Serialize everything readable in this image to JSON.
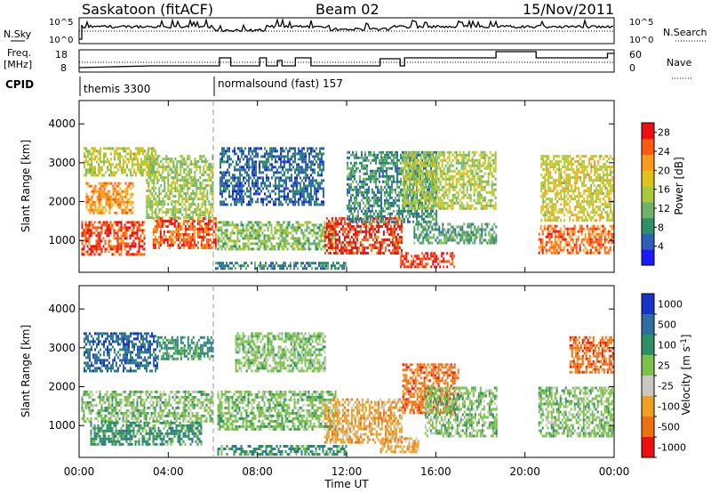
{
  "header": {
    "station": "Saskatoon (fitACF)",
    "beam": "Beam 02",
    "date": "15/Nov/2011"
  },
  "panel_labels": {
    "nsky": "N.Sky",
    "nsearch": "N.Search",
    "freq_line1": "Freq.",
    "freq_line2": "[MHz]",
    "nave": "Nave",
    "cpid": "CPID"
  },
  "small_axes": {
    "nsky_ticks": [
      "10^5",
      "10^0"
    ],
    "nsearch_ticks": [
      "10^5",
      "10^0"
    ],
    "freq_ticks": [
      "18",
      "8"
    ],
    "nave_ticks": [
      "60",
      "0"
    ]
  },
  "cpid_modes": [
    {
      "label": "themis 3300",
      "start_hour": 0
    },
    {
      "label": "normalsound (fast) 157",
      "start_hour": 6
    }
  ],
  "chart_data": [
    {
      "type": "heatmap",
      "title": "",
      "xlabel": "Time UT",
      "ylabel": "Slant Range [km]",
      "x_ticks": [
        "00:00",
        "04:00",
        "08:00",
        "12:00",
        "16:00",
        "20:00",
        "00:00"
      ],
      "y_ticks": [
        "1000",
        "2000",
        "3000",
        "4000"
      ],
      "xlim_hours": [
        0,
        24
      ],
      "ylim_km": [
        180,
        4600
      ],
      "colorbar": {
        "label": "Power [dB]",
        "ticks": [
          "4",
          "8",
          "12",
          "16",
          "20",
          "24",
          "28"
        ],
        "range": [
          0,
          30
        ],
        "colors": [
          "#1a1aff",
          "#2e5fb8",
          "#2f8f66",
          "#6fb36a",
          "#a8c93a",
          "#e0c21a",
          "#ff9a1a",
          "#ff5a10",
          "#ee1010"
        ]
      },
      "data_gaps_hours": [
        [
          18.8,
          20.6
        ]
      ],
      "regions": [
        {
          "t": [
            0.1,
            2.9
          ],
          "r": [
            650,
            1500
          ],
          "level": 26
        },
        {
          "t": [
            0.3,
            2.4
          ],
          "r": [
            1700,
            2500
          ],
          "level": 22
        },
        {
          "t": [
            0.2,
            3.4
          ],
          "r": [
            2700,
            3400
          ],
          "level": 16
        },
        {
          "t": [
            3.3,
            6.1
          ],
          "r": [
            800,
            1600
          ],
          "level": 25
        },
        {
          "t": [
            3.0,
            6.0
          ],
          "r": [
            1600,
            3200
          ],
          "level": 14
        },
        {
          "t": [
            6.1,
            12.0
          ],
          "r": [
            250,
            450
          ],
          "level": 8
        },
        {
          "t": [
            6.2,
            11.5
          ],
          "r": [
            800,
            1500
          ],
          "level": 13
        },
        {
          "t": [
            6.3,
            11.0
          ],
          "r": [
            1900,
            3400
          ],
          "level": 6
        },
        {
          "t": [
            11.0,
            14.5
          ],
          "r": [
            700,
            1600
          ],
          "level": 27
        },
        {
          "t": [
            12.0,
            16.0
          ],
          "r": [
            1500,
            3300
          ],
          "level": 9
        },
        {
          "t": [
            14.4,
            16.8
          ],
          "r": [
            350,
            700
          ],
          "level": 27
        },
        {
          "t": [
            15.0,
            18.7
          ],
          "r": [
            950,
            1450
          ],
          "level": 10
        },
        {
          "t": [
            14.5,
            18.7
          ],
          "r": [
            1800,
            3300
          ],
          "level": 15
        },
        {
          "t": [
            20.6,
            24.0
          ],
          "r": [
            700,
            1400
          ],
          "level": 24
        },
        {
          "t": [
            20.7,
            24.0
          ],
          "r": [
            1500,
            3200
          ],
          "level": 17
        }
      ]
    },
    {
      "type": "heatmap",
      "title": "",
      "xlabel": "Time UT",
      "ylabel": "Slant Range [km]",
      "x_ticks": [
        "00:00",
        "04:00",
        "08:00",
        "12:00",
        "16:00",
        "20:00",
        "00:00"
      ],
      "y_ticks": [
        "1000",
        "2000",
        "3000",
        "4000"
      ],
      "xlim_hours": [
        0,
        24
      ],
      "ylim_km": [
        180,
        4600
      ],
      "colorbar": {
        "label": "Velocity [m s^-1]",
        "ticks": [
          "1000",
          "500",
          "100",
          "25",
          "-25",
          "-100",
          "-500",
          "-1000"
        ],
        "colors": [
          "#1733c8",
          "#2f6ea0",
          "#2f8f66",
          "#7cc24a",
          "#c8c8c0",
          "#f0a020",
          "#f07010",
          "#ee1010"
        ]
      },
      "data_gaps_hours": [
        [
          18.8,
          20.6
        ]
      ],
      "regions": [
        {
          "t": [
            0.1,
            6.0
          ],
          "r": [
            1100,
            1900
          ],
          "level": "25"
        },
        {
          "t": [
            0.5,
            5.5
          ],
          "r": [
            500,
            1100
          ],
          "level": "100"
        },
        {
          "t": [
            0.2,
            3.5
          ],
          "r": [
            2400,
            3400
          ],
          "level": "500"
        },
        {
          "t": [
            3.5,
            6.0
          ],
          "r": [
            2700,
            3300
          ],
          "level": "100"
        },
        {
          "t": [
            6.2,
            11.5
          ],
          "r": [
            900,
            1900
          ],
          "level": "25"
        },
        {
          "t": [
            6.2,
            12.0
          ],
          "r": [
            250,
            500
          ],
          "level": "100"
        },
        {
          "t": [
            7.0,
            11.0
          ],
          "r": [
            2400,
            3400
          ],
          "level": "25"
        },
        {
          "t": [
            11.0,
            14.5
          ],
          "r": [
            600,
            1700
          ],
          "level": "-100"
        },
        {
          "t": [
            13.5,
            15.2
          ],
          "r": [
            350,
            700
          ],
          "level": "-100"
        },
        {
          "t": [
            14.5,
            17.0
          ],
          "r": [
            1300,
            2600
          ],
          "level": "-500"
        },
        {
          "t": [
            15.5,
            18.7
          ],
          "r": [
            700,
            2000
          ],
          "level": "25"
        },
        {
          "t": [
            20.6,
            24.0
          ],
          "r": [
            700,
            2000
          ],
          "level": "25"
        },
        {
          "t": [
            22.0,
            24.0
          ],
          "r": [
            2400,
            3300
          ],
          "level": "-500"
        }
      ]
    }
  ]
}
